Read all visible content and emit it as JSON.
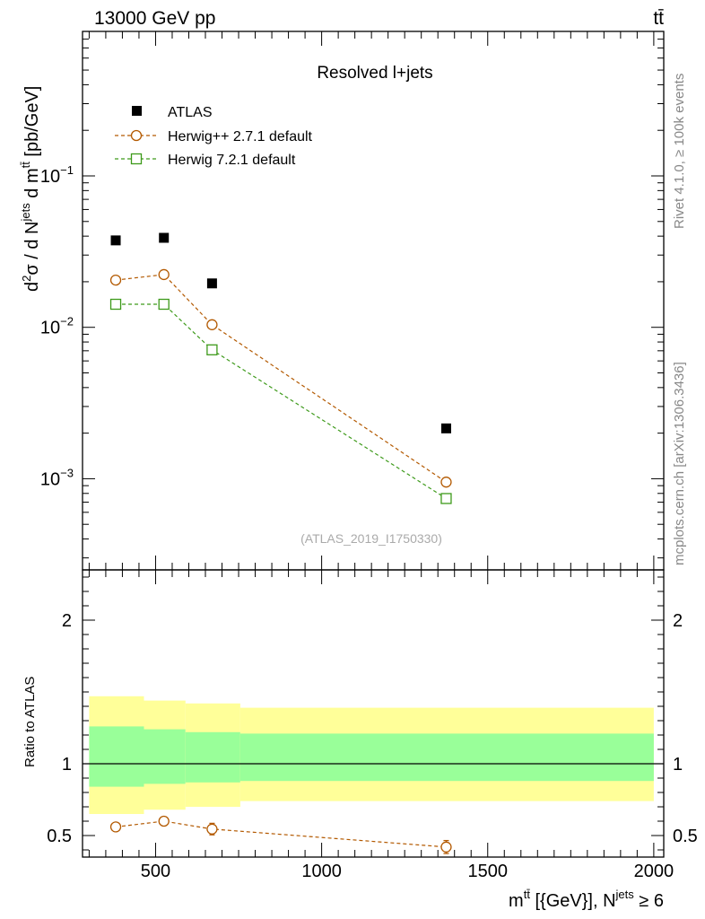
{
  "header": {
    "left": "13000 GeV pp",
    "right": "tt̄"
  },
  "side_labels": {
    "rivet": "Rivet 4.1.0, ≥ 100k events",
    "mcplots": "mcplots.cern.ch [arXiv:1306.3436]"
  },
  "colors": {
    "atlas": "#000000",
    "herwigpp": "#b35900",
    "herwig7": "#3d9a1a",
    "band_outer": "#ffff99",
    "band_inner": "#99ff99"
  },
  "chart_data": [
    {
      "type": "scatter",
      "panel": "main",
      "title": "Resolved l+jets",
      "watermark": "(ATLAS_2019_I1750330)",
      "ylabel": "d²σ / d N^{jets} d m^{tt̄} [pb/GeV]",
      "yscale": "log",
      "ylim": [
        0.00025,
        0.9
      ],
      "xlim": [
        280,
        2030
      ],
      "ytick_labels": [
        {
          "value": 0.1,
          "base": "10",
          "exp": "−1"
        },
        {
          "value": 0.01,
          "base": "10",
          "exp": "−2"
        },
        {
          "value": 0.001,
          "base": "10",
          "exp": "−3"
        }
      ],
      "series": [
        {
          "name": "ATLAS",
          "key": "atlas",
          "marker": "filled-square",
          "x": [
            380,
            525,
            670,
            1375
          ],
          "y": [
            0.0375,
            0.039,
            0.0195,
            0.00215
          ]
        },
        {
          "name": "Herwig++ 2.7.1 default",
          "key": "herwigpp",
          "marker": "open-circle",
          "line": "dashed",
          "x": [
            380,
            525,
            670,
            1375
          ],
          "y": [
            0.0205,
            0.0223,
            0.0104,
            0.00095
          ]
        },
        {
          "name": "Herwig 7.2.1 default",
          "key": "herwig7",
          "marker": "open-square",
          "line": "dashed",
          "x": [
            380,
            525,
            670,
            1375
          ],
          "y": [
            0.0142,
            0.0142,
            0.0071,
            0.00074
          ]
        }
      ]
    },
    {
      "type": "scatter",
      "panel": "ratio",
      "ylabel": "Ratio to ATLAS",
      "xlabel": "m^{tt̄} [{GeV}], N^{jets} ≥ 6",
      "ylim": [
        0.35,
        2.35
      ],
      "xlim": [
        280,
        2030
      ],
      "xticks": [
        500,
        1000,
        1500,
        2000
      ],
      "xtick_labels": [
        "500",
        "1000",
        "1500",
        "2000"
      ],
      "yticks": [
        0.5,
        1,
        2
      ],
      "ytick_labels": [
        "0.5",
        "1",
        "2"
      ],
      "bands": [
        {
          "x_lo": 300,
          "x_hi": 465,
          "outer": [
            0.65,
            1.47
          ],
          "inner": [
            0.84,
            1.26
          ]
        },
        {
          "x_lo": 465,
          "x_hi": 590,
          "outer": [
            0.68,
            1.44
          ],
          "inner": [
            0.86,
            1.24
          ]
        },
        {
          "x_lo": 590,
          "x_hi": 755,
          "outer": [
            0.7,
            1.42
          ],
          "inner": [
            0.87,
            1.22
          ]
        },
        {
          "x_lo": 755,
          "x_hi": 2000,
          "outer": [
            0.74,
            1.39
          ],
          "inner": [
            0.88,
            1.21
          ]
        }
      ],
      "series": [
        {
          "name": "Herwig++ 2.7.1 default",
          "key": "herwigpp",
          "marker": "open-circle",
          "line": "dashed",
          "x": [
            380,
            525,
            670,
            1375
          ],
          "y": [
            0.56,
            0.6,
            0.545,
            0.42
          ],
          "err": [
            0.03,
            0.03,
            0.04,
            0.045
          ]
        }
      ]
    }
  ]
}
